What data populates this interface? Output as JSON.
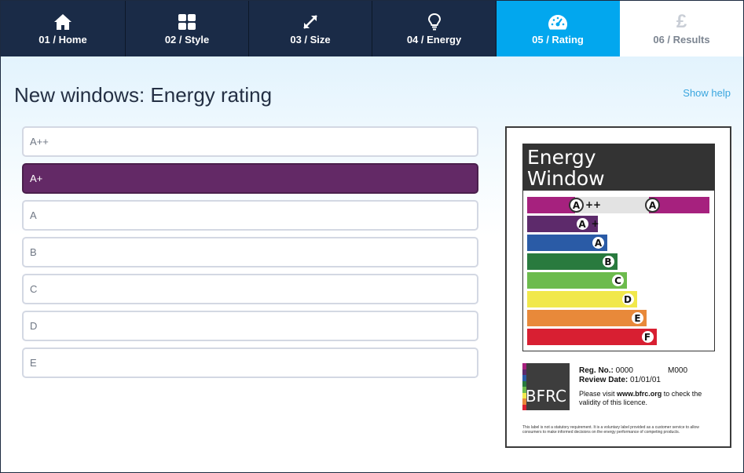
{
  "nav": {
    "tabs": [
      {
        "label": "01 / Home",
        "icon": "home-icon",
        "state": "normal",
        "width": 159
      },
      {
        "label": "02 / Style",
        "icon": "grid-icon",
        "state": "normal",
        "width": 157
      },
      {
        "label": "03 / Size",
        "icon": "resize-icon",
        "state": "normal",
        "width": 157
      },
      {
        "label": "04 / Energy",
        "icon": "lightbulb-icon",
        "state": "normal",
        "width": 158
      },
      {
        "label": "05 / Rating",
        "icon": "gauge-icon",
        "state": "active",
        "width": 157
      },
      {
        "label": "06 / Results",
        "icon": "pound-icon",
        "state": "disabled",
        "width": 157
      }
    ],
    "pound_glyph": "£"
  },
  "header": {
    "title": "New windows: Energy rating",
    "help_link": "Show help"
  },
  "options": {
    "items": [
      "A++",
      "A+",
      "A",
      "B",
      "C",
      "D",
      "E"
    ],
    "selected": "A+"
  },
  "energy_label": {
    "title_line1": "Energy",
    "title_line2": "Window",
    "bands": [
      {
        "letter": "A",
        "suffix": "++",
        "color": "#a6217e"
      },
      {
        "letter": "A",
        "suffix": "+",
        "color": "#5d2a6b"
      },
      {
        "letter": "A",
        "suffix": "",
        "color": "#2a5ba6"
      },
      {
        "letter": "B",
        "suffix": "",
        "color": "#297a3e"
      },
      {
        "letter": "C",
        "suffix": "",
        "color": "#6cbb4d"
      },
      {
        "letter": "D",
        "suffix": "",
        "color": "#f1e84b"
      },
      {
        "letter": "E",
        "suffix": "",
        "color": "#e8893a"
      },
      {
        "letter": "F",
        "suffix": "",
        "color": "#d81f32"
      }
    ],
    "indicator_letter": "A",
    "indicator_color": "#a6217e",
    "logo_text": "BFRC",
    "reg_label": "Reg. No.:",
    "reg_value": "0000",
    "model": "M000",
    "review_label": "Review Date:",
    "review_value": "01/01/01",
    "check_text_pre": "Please visit",
    "check_site": "www.bfrc.org",
    "check_text_post": "to check the validity of this licence.",
    "fine_print": "This label is not a statutory requirement. It is a voluntary label provided as a customer service to allow consumers to make informed decisions on the energy performance of competing products."
  }
}
